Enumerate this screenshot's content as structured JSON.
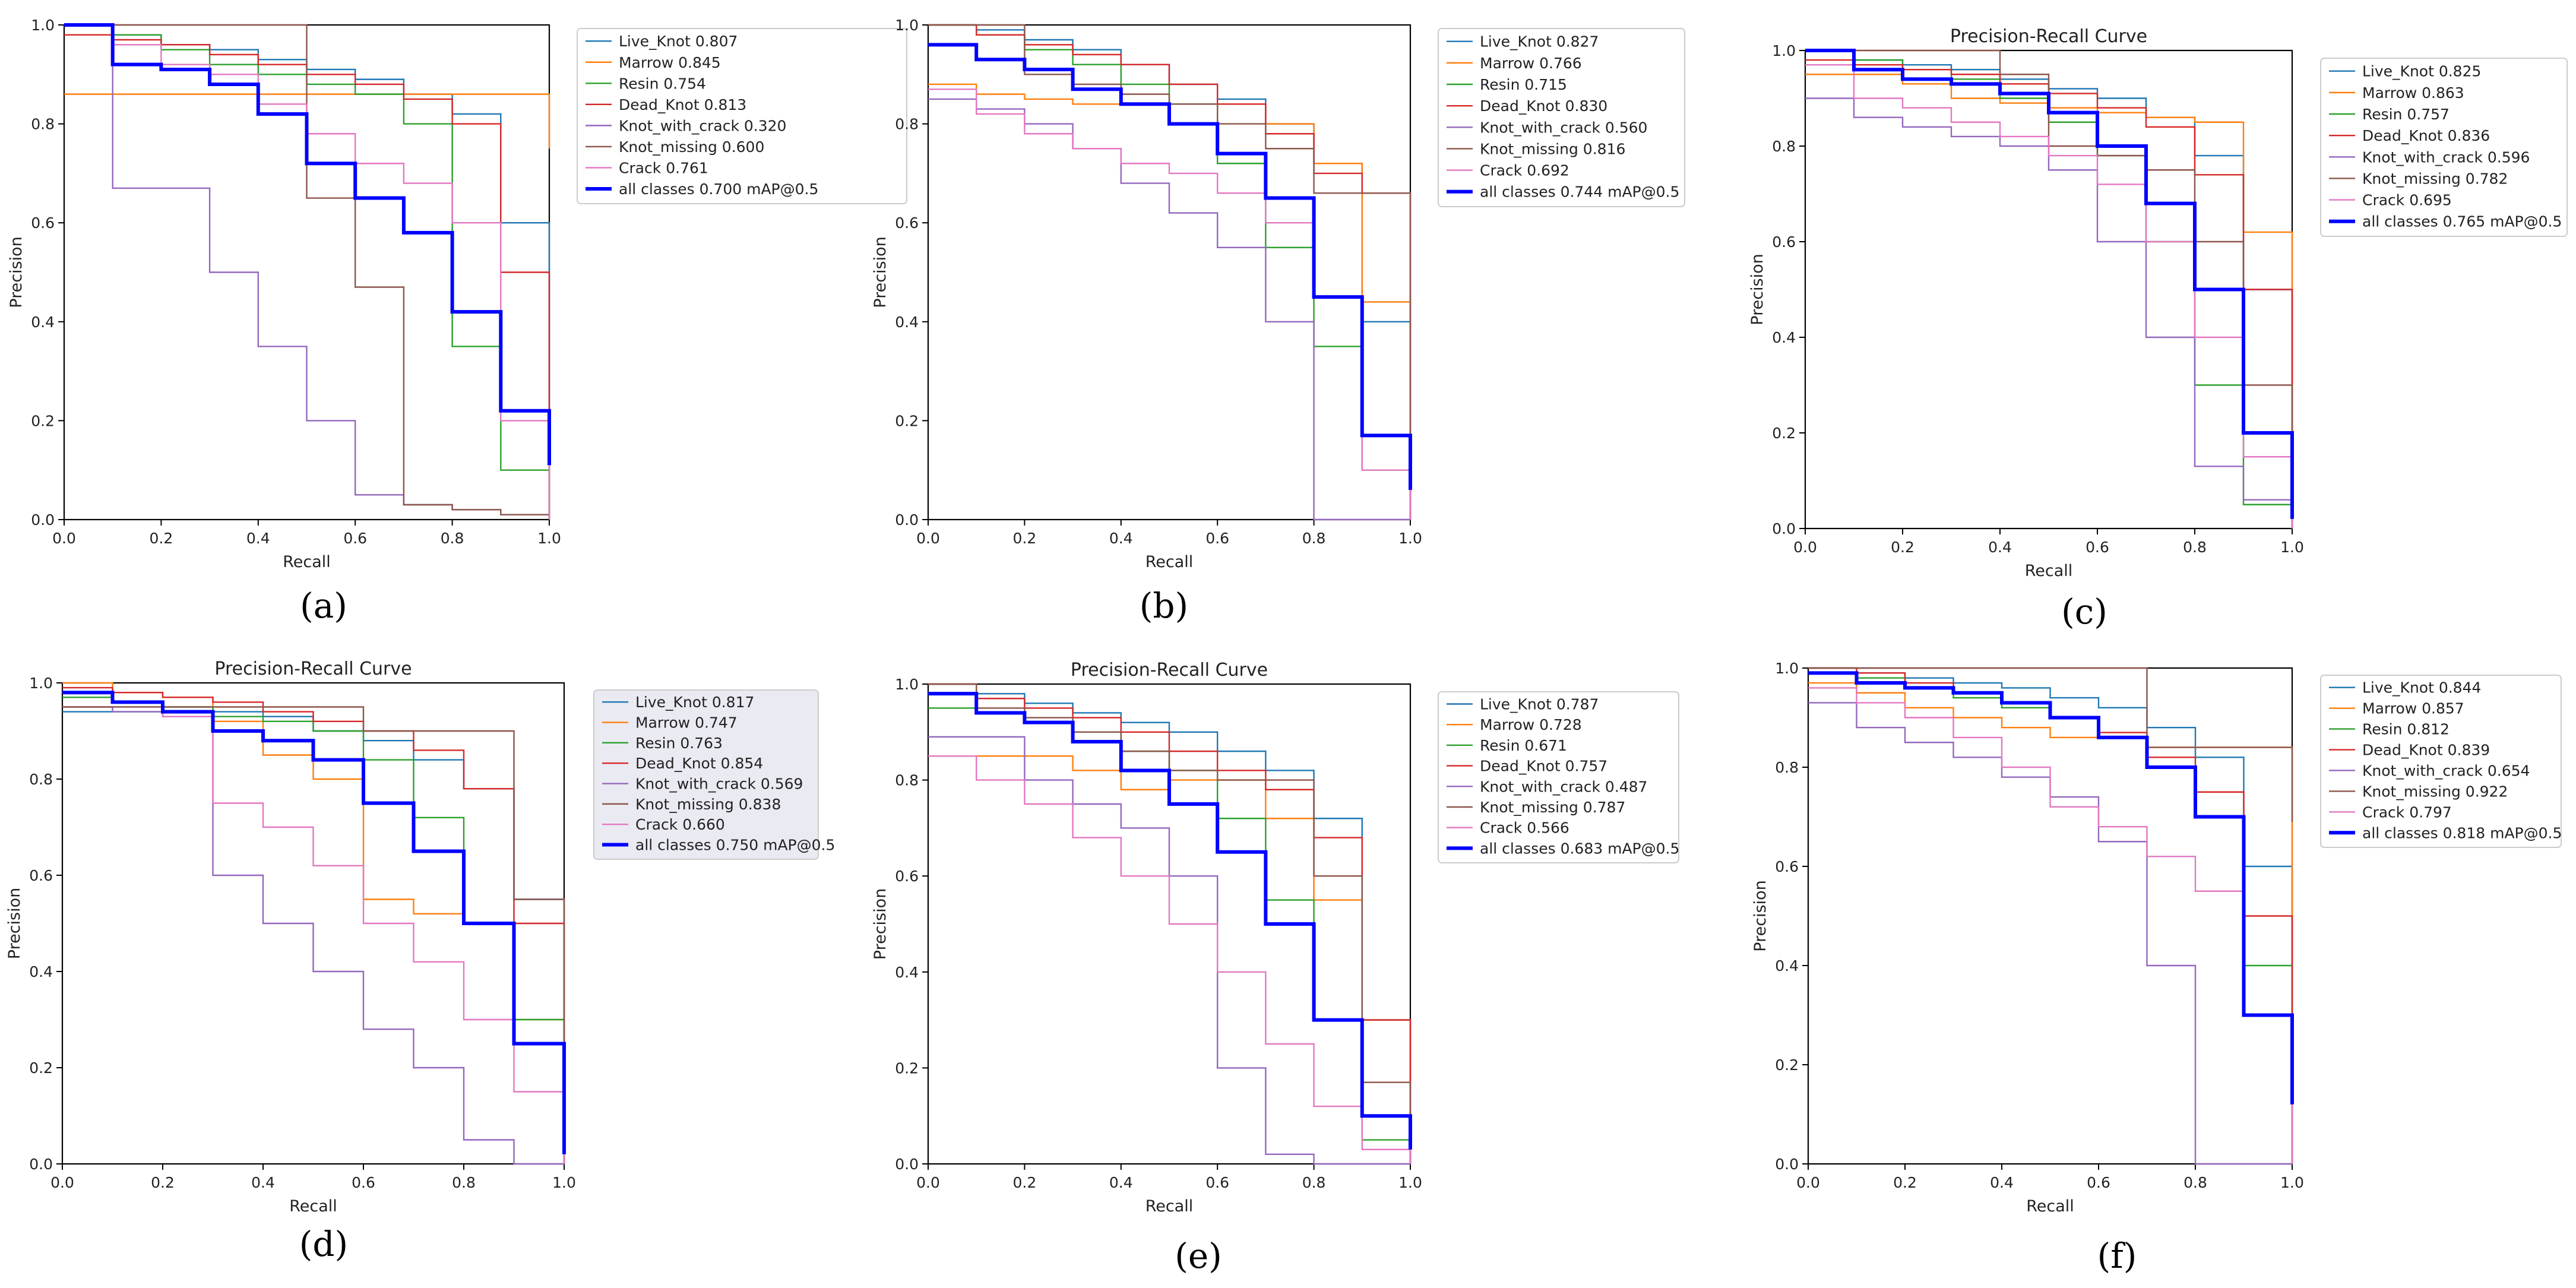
{
  "figure": {
    "panels": [
      {
        "label": "(a)",
        "title": "",
        "xlabel": "Recall",
        "ylabel": "Precision",
        "legend": [
          "Live_Knot 0.807",
          "Marrow 0.845",
          "Resin 0.754",
          "Dead_Knot 0.813",
          "Knot_with_crack 0.320",
          "Knot_missing 0.600",
          "Crack 0.761",
          "all classes 0.700 mAP@0.5"
        ]
      },
      {
        "label": "(b)",
        "title": "",
        "xlabel": "Recall",
        "ylabel": "Precision",
        "legend": [
          "Live_Knot 0.827",
          "Marrow 0.766",
          "Resin 0.715",
          "Dead_Knot 0.830",
          "Knot_with_crack 0.560",
          "Knot_missing 0.816",
          "Crack 0.692",
          "all classes 0.744 mAP@0.5"
        ]
      },
      {
        "label": "(c)",
        "title": "Precision-Recall Curve",
        "xlabel": "Recall",
        "ylabel": "Precision",
        "legend": [
          "Live_Knot 0.825",
          "Marrow 0.863",
          "Resin 0.757",
          "Dead_Knot 0.836",
          "Knot_with_crack 0.596",
          "Knot_missing 0.782",
          "Crack 0.695",
          "all classes 0.765 mAP@0.5"
        ]
      },
      {
        "label": "(d)",
        "title": "Precision-Recall Curve",
        "xlabel": "Recall",
        "ylabel": "Precision",
        "legend": [
          "Live_Knot 0.817",
          "Marrow 0.747",
          "Resin 0.763",
          "Dead_Knot 0.854",
          "Knot_with_crack 0.569",
          "Knot_missing 0.838",
          "Crack 0.660",
          "all classes 0.750 mAP@0.5"
        ]
      },
      {
        "label": "(e)",
        "title": "Precision-Recall Curve",
        "xlabel": "Recall",
        "ylabel": "Precision",
        "legend": [
          "Live_Knot 0.787",
          "Marrow 0.728",
          "Resin 0.671",
          "Dead_Knot 0.757",
          "Knot_with_crack 0.487",
          "Knot_missing 0.787",
          "Crack 0.566",
          "all classes 0.683 mAP@0.5"
        ]
      },
      {
        "label": "(f)",
        "title": "",
        "xlabel": "Recall",
        "ylabel": "Precision",
        "legend": [
          "Live_Knot 0.844",
          "Marrow 0.857",
          "Resin 0.812",
          "Dead_Knot 0.839",
          "Knot_with_crack 0.654",
          "Knot_missing 0.922",
          "Crack 0.797",
          "all classes 0.818 mAP@0.5"
        ]
      }
    ]
  },
  "colors": {
    "Live_Knot": "#1f77b4",
    "Marrow": "#ff7f0e",
    "Resin": "#2ca02c",
    "Dead_Knot": "#d62728",
    "Knot_with_crack": "#9467bd",
    "Knot_missing": "#8c564b",
    "Crack": "#e377c2",
    "all": "#0000ff"
  },
  "chart_data": [
    {
      "type": "line",
      "xlim": [
        0,
        1
      ],
      "ylim": [
        0,
        1
      ],
      "x": [
        0,
        0.1,
        0.2,
        0.3,
        0.4,
        0.5,
        0.6,
        0.7,
        0.8,
        0.9,
        1.0
      ],
      "xticks": [
        "0.0",
        "0.2",
        "0.4",
        "0.6",
        "0.8",
        "1.0"
      ],
      "yticks": [
        "0.0",
        "0.2",
        "0.4",
        "0.6",
        "0.8",
        "1.0"
      ],
      "series": [
        {
          "name": "Live_Knot 0.807",
          "values": [
            1.0,
            0.98,
            0.96,
            0.95,
            0.93,
            0.91,
            0.89,
            0.86,
            0.82,
            0.6,
            0.0
          ]
        },
        {
          "name": "Marrow 0.845",
          "values": [
            0.86,
            0.86,
            0.86,
            0.86,
            0.86,
            0.86,
            0.86,
            0.86,
            0.86,
            0.86,
            0.75
          ]
        },
        {
          "name": "Resin 0.754",
          "values": [
            1.0,
            0.98,
            0.95,
            0.92,
            0.9,
            0.88,
            0.86,
            0.8,
            0.35,
            0.1,
            0.0
          ]
        },
        {
          "name": "Dead_Knot 0.813",
          "values": [
            0.98,
            0.97,
            0.96,
            0.94,
            0.92,
            0.9,
            0.88,
            0.85,
            0.8,
            0.5,
            0.0
          ]
        },
        {
          "name": "Knot_with_crack 0.320",
          "values": [
            1.0,
            0.67,
            0.67,
            0.5,
            0.35,
            0.2,
            0.05,
            0.03,
            0.02,
            0.01,
            0.0
          ]
        },
        {
          "name": "Knot_missing 0.600",
          "values": [
            1.0,
            1.0,
            1.0,
            1.0,
            1.0,
            0.65,
            0.47,
            0.03,
            0.02,
            0.01,
            0.0
          ]
        },
        {
          "name": "Crack 0.761",
          "values": [
            1.0,
            0.96,
            0.92,
            0.9,
            0.84,
            0.78,
            0.72,
            0.68,
            0.6,
            0.2,
            0.0
          ]
        },
        {
          "name": "all classes 0.700 mAP@0.5",
          "values": [
            1.0,
            0.92,
            0.91,
            0.88,
            0.82,
            0.72,
            0.65,
            0.58,
            0.42,
            0.22,
            0.11
          ]
        }
      ]
    },
    {
      "type": "line",
      "xlim": [
        0,
        1
      ],
      "ylim": [
        0,
        1
      ],
      "x": [
        0,
        0.1,
        0.2,
        0.3,
        0.4,
        0.5,
        0.6,
        0.7,
        0.8,
        0.9,
        1.0
      ],
      "xticks": [
        "0.0",
        "0.2",
        "0.4",
        "0.6",
        "0.8",
        "1.0"
      ],
      "yticks": [
        "0.0",
        "0.2",
        "0.4",
        "0.6",
        "0.8",
        "1.0"
      ],
      "series": [
        {
          "name": "Live_Knot 0.827",
          "values": [
            1.0,
            0.99,
            0.97,
            0.95,
            0.92,
            0.88,
            0.85,
            0.8,
            0.72,
            0.4,
            0.0
          ]
        },
        {
          "name": "Marrow 0.766",
          "values": [
            0.88,
            0.86,
            0.85,
            0.84,
            0.84,
            0.84,
            0.84,
            0.8,
            0.72,
            0.44,
            0.24
          ]
        },
        {
          "name": "Resin 0.715",
          "values": [
            1.0,
            0.98,
            0.95,
            0.92,
            0.88,
            0.84,
            0.72,
            0.55,
            0.35,
            0.1,
            0.0
          ]
        },
        {
          "name": "Dead_Knot 0.830",
          "values": [
            1.0,
            0.98,
            0.96,
            0.94,
            0.92,
            0.88,
            0.84,
            0.78,
            0.7,
            0.66,
            0.0
          ]
        },
        {
          "name": "Knot_with_crack 0.560",
          "values": [
            0.85,
            0.83,
            0.8,
            0.75,
            0.68,
            0.62,
            0.55,
            0.4,
            0.0,
            0.0,
            0.0
          ]
        },
        {
          "name": "Knot_missing 0.816",
          "values": [
            1.0,
            1.0,
            0.9,
            0.88,
            0.86,
            0.84,
            0.8,
            0.75,
            0.66,
            0.66,
            0.0
          ]
        },
        {
          "name": "Crack 0.692",
          "values": [
            0.87,
            0.82,
            0.78,
            0.75,
            0.72,
            0.7,
            0.66,
            0.6,
            0.45,
            0.1,
            0.0
          ]
        },
        {
          "name": "all classes 0.744 mAP@0.5",
          "values": [
            0.96,
            0.93,
            0.91,
            0.87,
            0.84,
            0.8,
            0.74,
            0.65,
            0.45,
            0.17,
            0.06
          ]
        }
      ]
    },
    {
      "type": "line",
      "xlim": [
        0,
        1
      ],
      "ylim": [
        0,
        1
      ],
      "x": [
        0,
        0.1,
        0.2,
        0.3,
        0.4,
        0.5,
        0.6,
        0.7,
        0.8,
        0.9,
        1.0
      ],
      "xticks": [
        "0.0",
        "0.2",
        "0.4",
        "0.6",
        "0.8",
        "1.0"
      ],
      "yticks": [
        "0.0",
        "0.2",
        "0.4",
        "0.6",
        "0.8",
        "1.0"
      ],
      "series": [
        {
          "name": "Live_Knot 0.825",
          "values": [
            1.0,
            0.98,
            0.97,
            0.96,
            0.94,
            0.92,
            0.9,
            0.86,
            0.78,
            0.5,
            0.0
          ]
        },
        {
          "name": "Marrow 0.863",
          "values": [
            0.95,
            0.95,
            0.93,
            0.9,
            0.89,
            0.88,
            0.87,
            0.86,
            0.85,
            0.62,
            0.16
          ]
        },
        {
          "name": "Resin 0.757",
          "values": [
            1.0,
            0.98,
            0.96,
            0.94,
            0.9,
            0.85,
            0.78,
            0.6,
            0.3,
            0.05,
            0.0
          ]
        },
        {
          "name": "Dead_Knot 0.836",
          "values": [
            0.98,
            0.97,
            0.96,
            0.95,
            0.93,
            0.91,
            0.88,
            0.84,
            0.74,
            0.5,
            0.0
          ]
        },
        {
          "name": "Knot_with_crack 0.596",
          "values": [
            0.9,
            0.86,
            0.84,
            0.82,
            0.8,
            0.75,
            0.6,
            0.4,
            0.13,
            0.06,
            0.0
          ]
        },
        {
          "name": "Knot_missing 0.782",
          "values": [
            1.0,
            1.0,
            1.0,
            1.0,
            0.95,
            0.8,
            0.78,
            0.75,
            0.6,
            0.3,
            0.0
          ]
        },
        {
          "name": "Crack 0.695",
          "values": [
            0.97,
            0.9,
            0.88,
            0.85,
            0.82,
            0.78,
            0.72,
            0.6,
            0.4,
            0.15,
            0.0
          ]
        },
        {
          "name": "all classes 0.765 mAP@0.5",
          "values": [
            1.0,
            0.96,
            0.94,
            0.93,
            0.91,
            0.87,
            0.8,
            0.68,
            0.5,
            0.2,
            0.02
          ]
        }
      ]
    },
    {
      "type": "line",
      "xlim": [
        0,
        1
      ],
      "ylim": [
        0,
        1
      ],
      "x": [
        0,
        0.1,
        0.2,
        0.3,
        0.4,
        0.5,
        0.6,
        0.7,
        0.8,
        0.9,
        1.0
      ],
      "xticks": [
        "0.0",
        "0.2",
        "0.4",
        "0.6",
        "0.8",
        "1.0"
      ],
      "yticks": [
        "0.0",
        "0.2",
        "0.4",
        "0.6",
        "0.8",
        "1.0"
      ],
      "series": [
        {
          "name": "Live_Knot 0.817",
          "values": [
            0.94,
            0.94,
            0.94,
            0.94,
            0.93,
            0.9,
            0.88,
            0.84,
            0.78,
            0.55,
            0.0
          ]
        },
        {
          "name": "Marrow 0.747",
          "values": [
            1.0,
            0.98,
            0.97,
            0.92,
            0.85,
            0.8,
            0.55,
            0.52,
            0.5,
            0.3,
            0.0
          ]
        },
        {
          "name": "Resin 0.763",
          "values": [
            0.97,
            0.96,
            0.95,
            0.93,
            0.92,
            0.9,
            0.84,
            0.72,
            0.5,
            0.3,
            0.0
          ]
        },
        {
          "name": "Dead_Knot 0.854",
          "values": [
            0.99,
            0.98,
            0.97,
            0.96,
            0.94,
            0.92,
            0.9,
            0.86,
            0.78,
            0.5,
            0.0
          ]
        },
        {
          "name": "Knot_with_crack 0.569",
          "values": [
            0.95,
            0.94,
            0.93,
            0.6,
            0.5,
            0.4,
            0.28,
            0.2,
            0.05,
            0.0,
            0.0
          ]
        },
        {
          "name": "Knot_missing 0.838",
          "values": [
            0.95,
            0.95,
            0.95,
            0.95,
            0.95,
            0.95,
            0.9,
            0.9,
            0.9,
            0.55,
            0.0
          ]
        },
        {
          "name": "Crack 0.660",
          "values": [
            0.98,
            0.96,
            0.93,
            0.75,
            0.7,
            0.62,
            0.5,
            0.42,
            0.3,
            0.15,
            0.0
          ]
        },
        {
          "name": "all classes 0.750 mAP@0.5",
          "values": [
            0.98,
            0.96,
            0.94,
            0.9,
            0.88,
            0.84,
            0.75,
            0.65,
            0.5,
            0.25,
            0.02
          ]
        }
      ]
    },
    {
      "type": "line",
      "xlim": [
        0,
        1
      ],
      "ylim": [
        0,
        1
      ],
      "x": [
        0,
        0.1,
        0.2,
        0.3,
        0.4,
        0.5,
        0.6,
        0.7,
        0.8,
        0.9,
        1.0
      ],
      "xticks": [
        "0.0",
        "0.2",
        "0.4",
        "0.6",
        "0.8",
        "1.0"
      ],
      "yticks": [
        "0.0",
        "0.2",
        "0.4",
        "0.6",
        "0.8",
        "1.0"
      ],
      "series": [
        {
          "name": "Live_Knot 0.787",
          "values": [
            1.0,
            0.98,
            0.96,
            0.94,
            0.92,
            0.9,
            0.86,
            0.82,
            0.72,
            0.3,
            0.0
          ]
        },
        {
          "name": "Marrow 0.728",
          "values": [
            0.85,
            0.85,
            0.85,
            0.82,
            0.78,
            0.8,
            0.8,
            0.72,
            0.55,
            0.3,
            0.0
          ]
        },
        {
          "name": "Resin 0.671",
          "values": [
            0.95,
            0.94,
            0.92,
            0.9,
            0.86,
            0.82,
            0.72,
            0.55,
            0.3,
            0.05,
            0.0
          ]
        },
        {
          "name": "Dead_Knot 0.757",
          "values": [
            1.0,
            0.97,
            0.95,
            0.93,
            0.9,
            0.86,
            0.82,
            0.78,
            0.68,
            0.3,
            0.0
          ]
        },
        {
          "name": "Knot_with_crack 0.487",
          "values": [
            0.89,
            0.89,
            0.8,
            0.75,
            0.7,
            0.6,
            0.2,
            0.02,
            0.0,
            0.0,
            0.0
          ]
        },
        {
          "name": "Knot_missing 0.787",
          "values": [
            1.0,
            0.95,
            0.93,
            0.9,
            0.86,
            0.82,
            0.8,
            0.8,
            0.6,
            0.17,
            0.0
          ]
        },
        {
          "name": "Crack 0.566",
          "values": [
            0.85,
            0.8,
            0.75,
            0.68,
            0.6,
            0.5,
            0.4,
            0.25,
            0.12,
            0.03,
            0.0
          ]
        },
        {
          "name": "all classes 0.683 mAP@0.5",
          "values": [
            0.98,
            0.94,
            0.92,
            0.88,
            0.82,
            0.75,
            0.65,
            0.5,
            0.3,
            0.1,
            0.03
          ]
        }
      ]
    },
    {
      "type": "line",
      "xlim": [
        0,
        1
      ],
      "ylim": [
        0,
        1
      ],
      "x": [
        0,
        0.1,
        0.2,
        0.3,
        0.4,
        0.5,
        0.6,
        0.7,
        0.8,
        0.9,
        1.0
      ],
      "xticks": [
        "0.0",
        "0.2",
        "0.4",
        "0.6",
        "0.8",
        "1.0"
      ],
      "yticks": [
        "0.0",
        "0.2",
        "0.4",
        "0.6",
        "0.8",
        "1.0"
      ],
      "series": [
        {
          "name": "Live_Knot 0.844",
          "values": [
            1.0,
            0.99,
            0.98,
            0.97,
            0.96,
            0.94,
            0.92,
            0.88,
            0.82,
            0.6,
            0.0
          ]
        },
        {
          "name": "Marrow 0.857",
          "values": [
            0.97,
            0.95,
            0.92,
            0.9,
            0.88,
            0.86,
            0.86,
            0.84,
            0.84,
            0.84,
            0.17
          ]
        },
        {
          "name": "Resin 0.812",
          "values": [
            0.99,
            0.98,
            0.96,
            0.94,
            0.92,
            0.9,
            0.86,
            0.8,
            0.7,
            0.4,
            0.0
          ]
        },
        {
          "name": "Dead_Knot 0.839",
          "values": [
            1.0,
            0.99,
            0.97,
            0.95,
            0.93,
            0.9,
            0.87,
            0.82,
            0.75,
            0.5,
            0.0
          ]
        },
        {
          "name": "Knot_with_crack 0.654",
          "values": [
            0.93,
            0.88,
            0.85,
            0.82,
            0.78,
            0.74,
            0.65,
            0.4,
            0.0,
            0.0,
            0.0
          ]
        },
        {
          "name": "Knot_missing 0.922",
          "values": [
            1.0,
            1.0,
            1.0,
            1.0,
            1.0,
            1.0,
            1.0,
            0.84,
            0.84,
            0.84,
            0.69
          ]
        },
        {
          "name": "Crack 0.797",
          "values": [
            0.96,
            0.93,
            0.9,
            0.86,
            0.8,
            0.72,
            0.68,
            0.62,
            0.55,
            0.3,
            0.0
          ]
        },
        {
          "name": "all classes 0.818 mAP@0.5",
          "values": [
            0.99,
            0.97,
            0.96,
            0.95,
            0.93,
            0.9,
            0.86,
            0.8,
            0.7,
            0.3,
            0.12
          ]
        }
      ]
    }
  ]
}
